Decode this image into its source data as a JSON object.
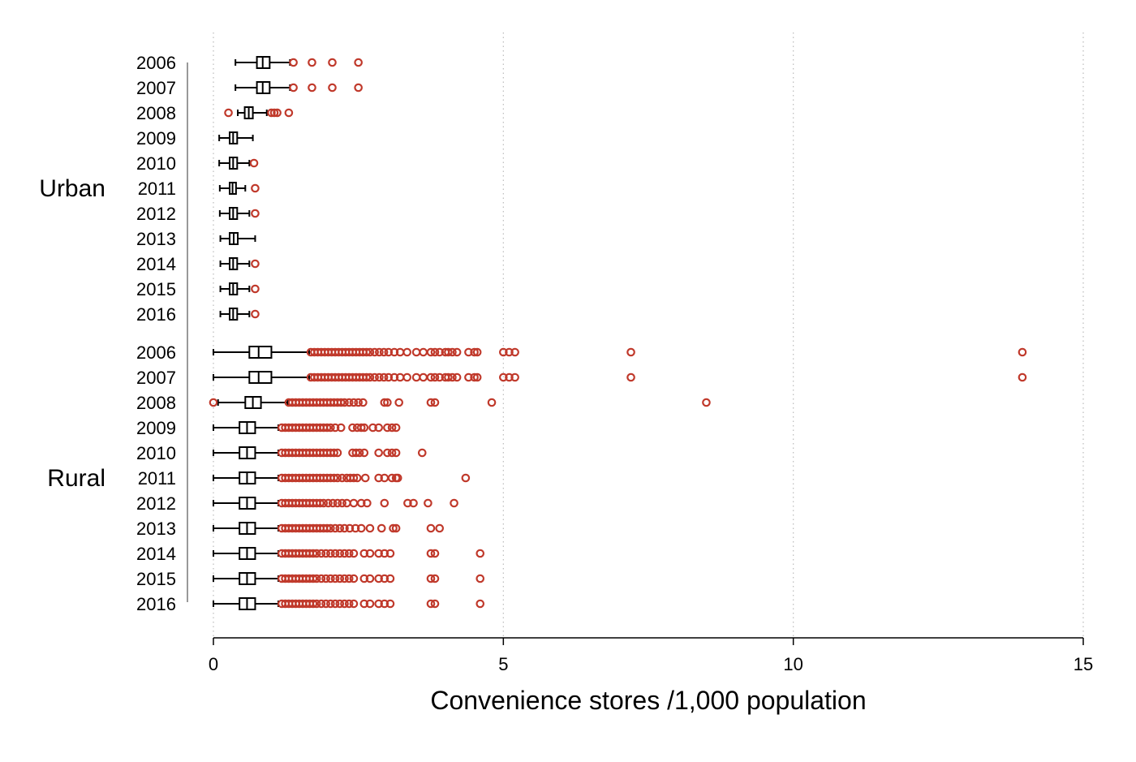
{
  "chart_data": {
    "type": "boxplot",
    "xlabel": "Convenience stores /1,000 population",
    "xlim": [
      0,
      15
    ],
    "xticks": [
      0,
      5,
      10,
      15
    ],
    "grid": "vertical dotted",
    "colors": {
      "box": "#000000",
      "outlier": "#c0392b",
      "grid": "#bbbbbb"
    },
    "groups": [
      {
        "name": "Urban",
        "rows": [
          {
            "year": "2006",
            "whisker": [
              0.38,
              1.32
            ],
            "q1": 0.75,
            "median": 0.85,
            "q3": 0.97,
            "outliers": [
              1.38,
              1.7,
              2.05,
              2.5
            ]
          },
          {
            "year": "2007",
            "whisker": [
              0.38,
              1.32
            ],
            "q1": 0.75,
            "median": 0.85,
            "q3": 0.97,
            "outliers": [
              1.38,
              1.7,
              2.05,
              2.5
            ]
          },
          {
            "year": "2008",
            "whisker": [
              0.42,
              0.92
            ],
            "q1": 0.54,
            "median": 0.61,
            "q3": 0.68,
            "outliers": [
              0.26,
              1.0,
              1.05,
              1.1,
              1.3
            ]
          },
          {
            "year": "2009",
            "whisker": [
              0.1,
              0.68
            ],
            "q1": 0.28,
            "median": 0.34,
            "q3": 0.41,
            "outliers": []
          },
          {
            "year": "2010",
            "whisker": [
              0.1,
              0.62
            ],
            "q1": 0.28,
            "median": 0.34,
            "q3": 0.41,
            "outliers": [
              0.7
            ]
          },
          {
            "year": "2011",
            "whisker": [
              0.11,
              0.55
            ],
            "q1": 0.28,
            "median": 0.33,
            "q3": 0.39,
            "outliers": [
              0.72
            ]
          },
          {
            "year": "2012",
            "whisker": [
              0.11,
              0.62
            ],
            "q1": 0.28,
            "median": 0.34,
            "q3": 0.41,
            "outliers": [
              0.72
            ]
          },
          {
            "year": "2013",
            "whisker": [
              0.12,
              0.72
            ],
            "q1": 0.28,
            "median": 0.35,
            "q3": 0.42,
            "outliers": []
          },
          {
            "year": "2014",
            "whisker": [
              0.12,
              0.62
            ],
            "q1": 0.28,
            "median": 0.34,
            "q3": 0.41,
            "outliers": [
              0.72
            ]
          },
          {
            "year": "2015",
            "whisker": [
              0.12,
              0.62
            ],
            "q1": 0.28,
            "median": 0.34,
            "q3": 0.41,
            "outliers": [
              0.72
            ]
          },
          {
            "year": "2016",
            "whisker": [
              0.12,
              0.62
            ],
            "q1": 0.28,
            "median": 0.34,
            "q3": 0.41,
            "outliers": [
              0.72
            ]
          }
        ]
      },
      {
        "name": "Rural",
        "rows": [
          {
            "year": "2006",
            "whisker": [
              0.0,
              1.65
            ],
            "q1": 0.62,
            "median": 0.78,
            "q3": 1.0,
            "outliers": [
              1.68,
              1.74,
              1.8,
              1.86,
              1.92,
              1.98,
              2.04,
              2.1,
              2.16,
              2.22,
              2.28,
              2.34,
              2.4,
              2.46,
              2.52,
              2.58,
              2.64,
              2.7,
              2.78,
              2.86,
              2.94,
              3.02,
              3.12,
              3.22,
              3.34,
              3.5,
              3.62,
              3.75,
              3.82,
              3.9,
              4.0,
              4.05,
              4.12,
              4.2,
              4.4,
              4.5,
              4.55,
              5.0,
              5.1,
              5.2,
              7.2,
              13.95
            ]
          },
          {
            "year": "2007",
            "whisker": [
              0.0,
              1.65
            ],
            "q1": 0.62,
            "median": 0.78,
            "q3": 1.0,
            "outliers": [
              1.68,
              1.74,
              1.8,
              1.86,
              1.92,
              1.98,
              2.04,
              2.1,
              2.16,
              2.22,
              2.28,
              2.34,
              2.4,
              2.46,
              2.52,
              2.58,
              2.64,
              2.7,
              2.78,
              2.86,
              2.94,
              3.02,
              3.12,
              3.22,
              3.34,
              3.5,
              3.62,
              3.75,
              3.82,
              3.9,
              4.0,
              4.05,
              4.12,
              4.2,
              4.4,
              4.5,
              4.55,
              5.0,
              5.1,
              5.2,
              7.2,
              13.95
            ]
          },
          {
            "year": "2008",
            "whisker": [
              0.08,
              1.28
            ],
            "q1": 0.55,
            "median": 0.68,
            "q3": 0.82,
            "outliers": [
              0.0,
              1.3,
              1.36,
              1.42,
              1.48,
              1.54,
              1.6,
              1.66,
              1.72,
              1.78,
              1.84,
              1.9,
              1.96,
              2.02,
              2.08,
              2.14,
              2.2,
              2.26,
              2.34,
              2.42,
              2.5,
              2.58,
              2.95,
              3.0,
              3.2,
              3.75,
              3.82,
              4.8,
              8.5
            ]
          },
          {
            "year": "2009",
            "whisker": [
              0.0,
              1.12
            ],
            "q1": 0.45,
            "median": 0.58,
            "q3": 0.72,
            "outliers": [
              1.18,
              1.24,
              1.3,
              1.36,
              1.42,
              1.48,
              1.54,
              1.6,
              1.66,
              1.72,
              1.78,
              1.84,
              1.9,
              1.96,
              2.02,
              2.1,
              2.2,
              2.4,
              2.48,
              2.55,
              2.6,
              2.75,
              2.85,
              3.0,
              3.08,
              3.15
            ]
          },
          {
            "year": "2010",
            "whisker": [
              0.0,
              1.12
            ],
            "q1": 0.45,
            "median": 0.58,
            "q3": 0.72,
            "outliers": [
              1.18,
              1.24,
              1.3,
              1.36,
              1.42,
              1.48,
              1.54,
              1.6,
              1.66,
              1.72,
              1.78,
              1.84,
              1.9,
              1.96,
              2.02,
              2.08,
              2.14,
              2.4,
              2.46,
              2.52,
              2.6,
              2.85,
              3.0,
              3.08,
              3.15,
              3.6
            ]
          },
          {
            "year": "2011",
            "whisker": [
              0.0,
              1.12
            ],
            "q1": 0.45,
            "median": 0.58,
            "q3": 0.72,
            "outliers": [
              1.18,
              1.24,
              1.3,
              1.36,
              1.42,
              1.48,
              1.54,
              1.6,
              1.66,
              1.72,
              1.78,
              1.84,
              1.9,
              1.96,
              2.02,
              2.08,
              2.14,
              2.22,
              2.3,
              2.36,
              2.42,
              2.48,
              2.62,
              2.85,
              2.95,
              3.08,
              3.15,
              3.18,
              4.35
            ]
          },
          {
            "year": "2012",
            "whisker": [
              0.0,
              1.12
            ],
            "q1": 0.45,
            "median": 0.58,
            "q3": 0.72,
            "outliers": [
              1.18,
              1.24,
              1.3,
              1.36,
              1.42,
              1.48,
              1.54,
              1.6,
              1.66,
              1.72,
              1.78,
              1.84,
              1.9,
              1.98,
              2.06,
              2.14,
              2.22,
              2.3,
              2.42,
              2.55,
              2.65,
              2.95,
              3.35,
              3.45,
              3.7,
              4.15
            ]
          },
          {
            "year": "2013",
            "whisker": [
              0.0,
              1.12
            ],
            "q1": 0.45,
            "median": 0.58,
            "q3": 0.72,
            "outliers": [
              1.18,
              1.24,
              1.3,
              1.36,
              1.42,
              1.48,
              1.54,
              1.6,
              1.66,
              1.72,
              1.78,
              1.84,
              1.9,
              1.96,
              2.02,
              2.1,
              2.18,
              2.26,
              2.35,
              2.45,
              2.55,
              2.7,
              2.9,
              3.1,
              3.15,
              3.75,
              3.9
            ]
          },
          {
            "year": "2014",
            "whisker": [
              0.0,
              1.12
            ],
            "q1": 0.45,
            "median": 0.58,
            "q3": 0.72,
            "outliers": [
              1.18,
              1.24,
              1.3,
              1.36,
              1.42,
              1.48,
              1.54,
              1.6,
              1.66,
              1.72,
              1.78,
              1.86,
              1.94,
              2.02,
              2.1,
              2.18,
              2.26,
              2.34,
              2.42,
              2.6,
              2.7,
              2.85,
              2.95,
              3.05,
              3.75,
              3.82,
              4.6
            ]
          },
          {
            "year": "2015",
            "whisker": [
              0.0,
              1.12
            ],
            "q1": 0.45,
            "median": 0.58,
            "q3": 0.72,
            "outliers": [
              1.18,
              1.24,
              1.3,
              1.36,
              1.42,
              1.48,
              1.54,
              1.6,
              1.66,
              1.72,
              1.78,
              1.86,
              1.94,
              2.02,
              2.1,
              2.18,
              2.26,
              2.34,
              2.42,
              2.6,
              2.7,
              2.85,
              2.95,
              3.05,
              3.75,
              3.82,
              4.6
            ]
          },
          {
            "year": "2016",
            "whisker": [
              0.0,
              1.12
            ],
            "q1": 0.45,
            "median": 0.58,
            "q3": 0.72,
            "outliers": [
              1.18,
              1.24,
              1.3,
              1.36,
              1.42,
              1.48,
              1.54,
              1.6,
              1.66,
              1.72,
              1.78,
              1.86,
              1.94,
              2.02,
              2.1,
              2.18,
              2.26,
              2.34,
              2.42,
              2.6,
              2.7,
              2.85,
              2.95,
              3.05,
              3.75,
              3.82,
              4.6
            ]
          }
        ]
      }
    ]
  }
}
